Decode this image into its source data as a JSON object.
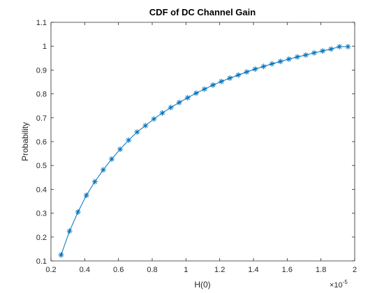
{
  "chart_data": {
    "type": "line",
    "title": "CDF of DC Channel Gain",
    "xlabel": "H(0)",
    "ylabel": "Probability",
    "x_multiplier_base": "×10",
    "x_multiplier_exponent": "-5",
    "xlim": [
      0.2,
      2.0
    ],
    "ylim": [
      0.1,
      1.1
    ],
    "xticks": [
      "0.2",
      "0.4",
      "0.6",
      "0.8",
      "1",
      "1.2",
      "1.4",
      "1.6",
      "1.8",
      "2"
    ],
    "yticks": [
      "0.1",
      "0.2",
      "0.3",
      "0.4",
      "0.5",
      "0.6",
      "0.7",
      "0.8",
      "0.9",
      "1",
      "1.1"
    ],
    "grid": false,
    "marker": "*",
    "line_color": "#0072BD",
    "series": [
      {
        "x": [
          0.26,
          0.31,
          0.36,
          0.41,
          0.46,
          0.51,
          0.56,
          0.61,
          0.66,
          0.71,
          0.76,
          0.81,
          0.86,
          0.91,
          0.96,
          1.01,
          1.06,
          1.11,
          1.16,
          1.21,
          1.26,
          1.31,
          1.36,
          1.41,
          1.46,
          1.51,
          1.56,
          1.61,
          1.66,
          1.71,
          1.76,
          1.81,
          1.86,
          1.91,
          1.96
        ],
        "y": [
          0.125,
          0.225,
          0.305,
          0.375,
          0.432,
          0.482,
          0.527,
          0.568,
          0.606,
          0.64,
          0.667,
          0.695,
          0.72,
          0.743,
          0.764,
          0.784,
          0.803,
          0.82,
          0.837,
          0.852,
          0.866,
          0.879,
          0.892,
          0.904,
          0.915,
          0.926,
          0.936,
          0.946,
          0.955,
          0.963,
          0.972,
          0.98,
          0.988,
          0.998,
          0.998
        ]
      }
    ]
  }
}
